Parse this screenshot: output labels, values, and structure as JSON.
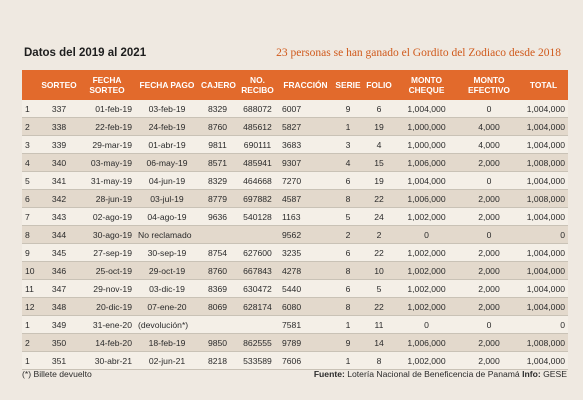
{
  "header": {
    "left_title": "Datos del 2019 al 2021",
    "right_title": "23 personas se han ganado el Gordito del Zodiaco desde 2018"
  },
  "columns": [
    "",
    "SORTEO",
    "FECHA SORTEO",
    "FECHA PAGO",
    "CAJERO",
    "NO. RECIBO",
    "FRACCIÓN",
    "SERIE",
    "FOLIO",
    "MONTO CHEQUE",
    "MONTO EFECTIVO",
    "TOTAL"
  ],
  "rows": [
    [
      "1",
      "337",
      "01-feb-19",
      "03-feb-19",
      "8329",
      "688072",
      "6007",
      "9",
      "6",
      "1,004,000",
      "0",
      "1,004,000"
    ],
    [
      "2",
      "338",
      "22-feb-19",
      "24-feb-19",
      "8760",
      "485612",
      "5827",
      "1",
      "19",
      "1,000,000",
      "4,000",
      "1,004,000"
    ],
    [
      "3",
      "339",
      "29-mar-19",
      "01-abr-19",
      "9811",
      "690111",
      "3683",
      "3",
      "4",
      "1,000,000",
      "4,000",
      "1,004,000"
    ],
    [
      "4",
      "340",
      "03-may-19",
      "06-may-19",
      "8571",
      "485941",
      "9307",
      "4",
      "15",
      "1,006,000",
      "2,000",
      "1,008,000"
    ],
    [
      "5",
      "341",
      "31-may-19",
      "04-jun-19",
      "8329",
      "464668",
      "7270",
      "6",
      "19",
      "1,004,000",
      "0",
      "1,004,000"
    ],
    [
      "6",
      "342",
      "28-jun-19",
      "03-jul-19",
      "8779",
      "697882",
      "4587",
      "8",
      "22",
      "1,006,000",
      "2,000",
      "1,008,000"
    ],
    [
      "7",
      "343",
      "02-ago-19",
      "04-ago-19",
      "9636",
      "540128",
      "1163",
      "5",
      "24",
      "1,002,000",
      "2,000",
      "1,004,000"
    ],
    [
      "8",
      "344",
      "30-ago-19",
      "No reclamado",
      "",
      "",
      "9562",
      "2",
      "2",
      "0",
      "0",
      "0"
    ],
    [
      "9",
      "345",
      "27-sep-19",
      "30-sep-19",
      "8754",
      "627600",
      "3235",
      "6",
      "22",
      "1,002,000",
      "2,000",
      "1,004,000"
    ],
    [
      "10",
      "346",
      "25-oct-19",
      "29-oct-19",
      "8760",
      "667843",
      "4278",
      "8",
      "10",
      "1,002,000",
      "2,000",
      "1,004,000"
    ],
    [
      "11",
      "347",
      "29-nov-19",
      "03-dic-19",
      "8369",
      "630472",
      "5440",
      "6",
      "5",
      "1,002,000",
      "2,000",
      "1,004,000"
    ],
    [
      "12",
      "348",
      "20-dic-19",
      "07-ene-20",
      "8069",
      "628174",
      "6080",
      "8",
      "22",
      "1,002,000",
      "2,000",
      "1,004,000"
    ],
    [
      "1",
      "349",
      "31-ene-20",
      "(devolución*)",
      "",
      "",
      "7581",
      "1",
      "11",
      "0",
      "0",
      "0"
    ],
    [
      "2",
      "350",
      "14-feb-20",
      "18-feb-19",
      "9850",
      "862555",
      "9789",
      "9",
      "14",
      "1,006,000",
      "2,000",
      "1,008,000"
    ],
    [
      "1",
      "351",
      "30-abr-21",
      "02-jun-21",
      "8218",
      "533589",
      "7606",
      "1",
      "8",
      "1,002,000",
      "2,000",
      "1,004,000"
    ]
  ],
  "footer": {
    "note": "(*) Billete devuelto",
    "fuente_label": "Fuente:",
    "fuente_text": "Lotería Nacional de Beneficencia de Panamá",
    "info_label": "Info:",
    "info_text": "GESE"
  }
}
